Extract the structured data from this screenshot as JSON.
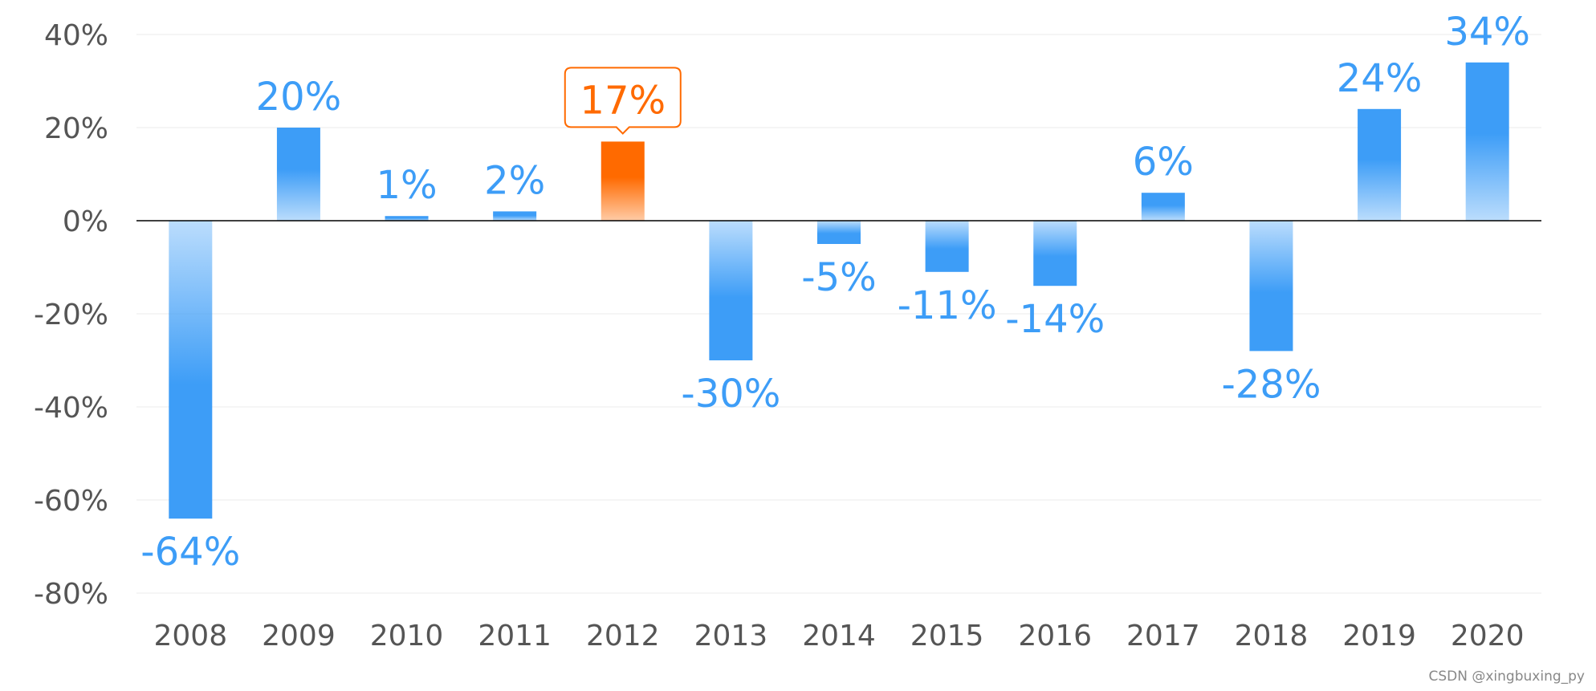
{
  "chart_data": {
    "type": "bar",
    "title": "",
    "xlabel": "",
    "ylabel": "",
    "categories": [
      "2008",
      "2009",
      "2010",
      "2011",
      "2012",
      "2013",
      "2014",
      "2015",
      "2016",
      "2017",
      "2018",
      "2019",
      "2020"
    ],
    "values": [
      -64,
      20,
      1,
      2,
      17,
      -30,
      -5,
      -11,
      -14,
      6,
      -28,
      24,
      34
    ],
    "data_labels": [
      "-64%",
      "20%",
      "1%",
      "2%",
      "17%",
      "-30%",
      "-5%",
      "-11%",
      "-14%",
      "6%",
      "-28%",
      "24%",
      "34%"
    ],
    "ylim": [
      -80,
      40
    ],
    "yticks": [
      40,
      20,
      0,
      -20,
      -40,
      -60,
      -80
    ],
    "ytick_labels": [
      "40%",
      "20%",
      "0%",
      "-20%",
      "-40%",
      "-60%",
      "-80%"
    ],
    "highlight_category": "2012",
    "grid": true,
    "colors": {
      "bar": "#3d9df7",
      "highlight": "#ff6a00",
      "label": "#3d9df7",
      "highlight_label": "#ff6a00"
    }
  },
  "watermark": "CSDN @xingbuxing_py"
}
